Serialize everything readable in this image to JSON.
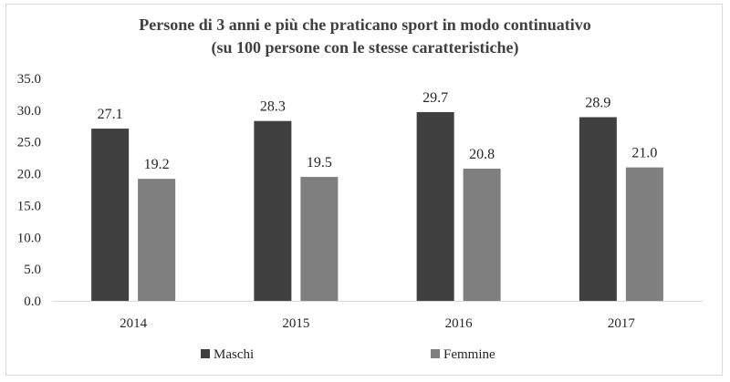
{
  "chart_data": {
    "type": "bar",
    "title": [
      "Persone di 3 anni e più che praticano sport in modo continuativo",
      "(su 100 persone con le stesse caratteristiche)"
    ],
    "categories": [
      "2014",
      "2015",
      "2016",
      "2017"
    ],
    "series": [
      {
        "name": "Maschi",
        "values": [
          27.1,
          28.3,
          29.7,
          28.9
        ],
        "color": "#404040"
      },
      {
        "name": "Femmine",
        "values": [
          19.2,
          19.5,
          20.8,
          21.0
        ],
        "color": "#7f7f7f"
      }
    ],
    "ylim": [
      0,
      35
    ],
    "yticks": [
      "0.0",
      "5.0",
      "10.0",
      "15.0",
      "20.0",
      "25.0",
      "30.0",
      "35.0"
    ],
    "data_labels": [
      [
        "27.1",
        "28.3",
        "29.7",
        "28.9"
      ],
      [
        "19.2",
        "19.5",
        "20.8",
        "21.0"
      ]
    ],
    "grid": false,
    "legend_position": "bottom"
  }
}
